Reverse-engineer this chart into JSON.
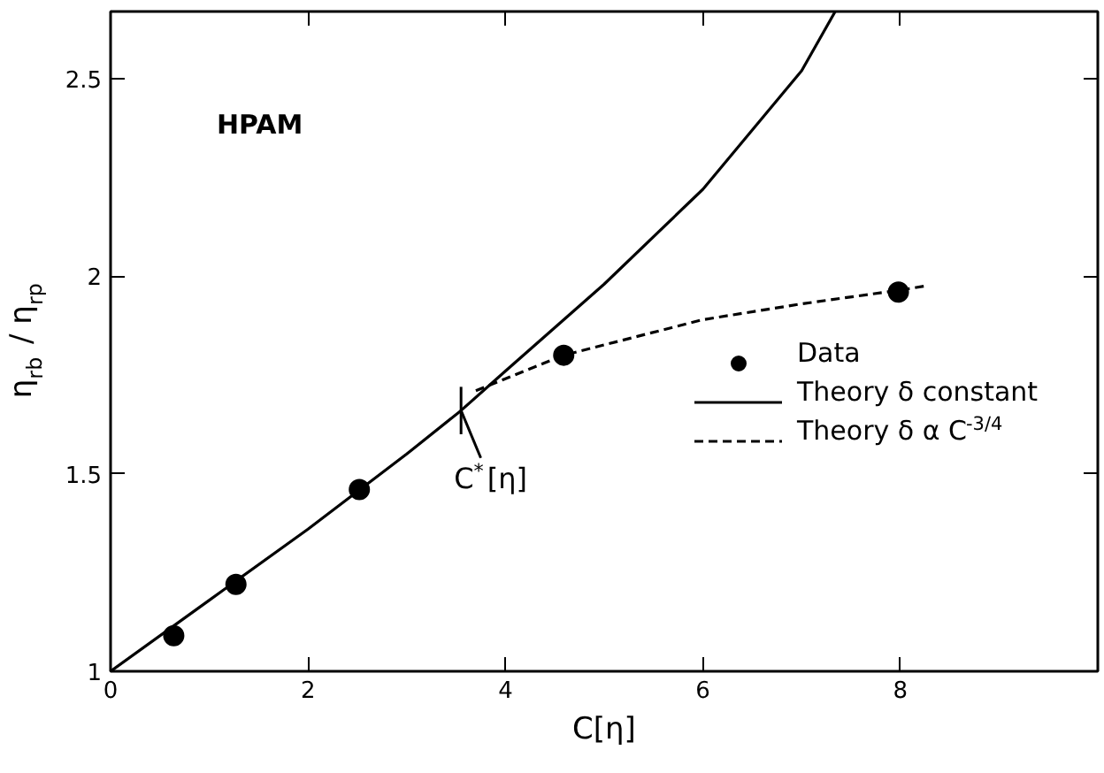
{
  "chart_data": {
    "type": "line",
    "xlabel": "C[η]",
    "ylabel": "η$_{rb}$ / η$_{rp}$",
    "xlim": [
      0,
      10
    ],
    "ylim": [
      1,
      2.67
    ],
    "xticks": [
      0,
      2,
      4,
      6,
      8
    ],
    "yticks": [
      1,
      1.5,
      2,
      2.5
    ],
    "grid": false,
    "legend": "right",
    "annotations": [
      "HPAM",
      {
        "text": "C$^{*}$[η]",
        "x": 3.55,
        "y": 1.66
      }
    ],
    "series": [
      {
        "name": "Data",
        "type": "scatter",
        "marker": "circle",
        "color": "#000000",
        "x": [
          0.64,
          1.27,
          2.52,
          4.59,
          7.98
        ],
        "values": [
          1.09,
          1.22,
          1.46,
          1.8,
          1.96
        ]
      },
      {
        "name": "Theory δ constant",
        "line_style": "solid",
        "color": "#000000",
        "x": [
          0,
          1,
          2,
          3,
          3.55,
          4,
          5,
          6,
          7,
          7.34
        ],
        "values": [
          1,
          1.18,
          1.36,
          1.55,
          1.66,
          1.76,
          1.98,
          2.22,
          2.52,
          2.67
        ]
      },
      {
        "name": "Theory δ α C$^{-3/4}$",
        "line_style": "dashed",
        "color": "#000000",
        "x": [
          3.7,
          4.59,
          6,
          7,
          8,
          8.25
        ],
        "values": [
          1.71,
          1.8,
          1.89,
          1.93,
          1.965,
          1.975
        ]
      }
    ]
  }
}
